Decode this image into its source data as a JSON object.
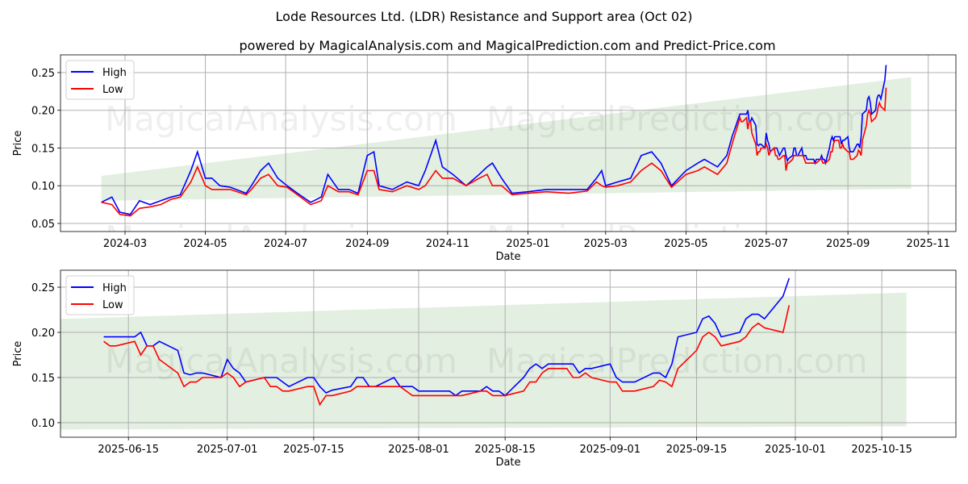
{
  "chart_data": [
    {
      "type": "line",
      "title": "Lode Resources Ltd. (LDR) Resistance and Support area (Oct 02)",
      "subtitle": "powered by MagicalAnalysis.com and MagicalPrediction.com and Predict-Price.com",
      "xlabel": "Date",
      "ylabel": "Price",
      "xlim": [
        "2024-01-12",
        "2025-11-22"
      ],
      "ylim": [
        0.0393,
        0.2735
      ],
      "xticks": [
        {
          "date": "2024-03-01",
          "label": "2024-03"
        },
        {
          "date": "2024-05-01",
          "label": "2024-05"
        },
        {
          "date": "2024-07-01",
          "label": "2024-07"
        },
        {
          "date": "2024-09-01",
          "label": "2024-09"
        },
        {
          "date": "2024-11-01",
          "label": "2024-11"
        },
        {
          "date": "2025-01-01",
          "label": "2025-01"
        },
        {
          "date": "2025-03-01",
          "label": "2025-03"
        },
        {
          "date": "2025-05-01",
          "label": "2025-05"
        },
        {
          "date": "2025-07-01",
          "label": "2025-07"
        },
        {
          "date": "2025-09-01",
          "label": "2025-09"
        },
        {
          "date": "2025-11-01",
          "label": "2025-11"
        }
      ],
      "yticks": [
        "0.05",
        "0.10",
        "0.15",
        "0.20",
        "0.25"
      ],
      "grid": true,
      "legend": {
        "placement": "top-left",
        "entries": [
          "High",
          "Low"
        ]
      },
      "band": {
        "start": "2024-02-12",
        "end": "2025-10-19",
        "lower": [
          0.08,
          0.096
        ],
        "upper": [
          0.113,
          0.244
        ],
        "color": "#e3efe1"
      },
      "series_colors": {
        "High": "#0000ff",
        "Low": "#ff0000"
      },
      "dates": [
        "2024-02-12",
        "2024-02-20",
        "2024-02-26",
        "2024-03-05",
        "2024-03-12",
        "2024-03-20",
        "2024-03-28",
        "2024-04-05",
        "2024-04-12",
        "2024-04-20",
        "2024-04-25",
        "2024-05-01",
        "2024-05-06",
        "2024-05-12",
        "2024-05-20",
        "2024-06-01",
        "2024-06-05",
        "2024-06-12",
        "2024-06-18",
        "2024-06-25",
        "2024-07-02",
        "2024-07-10",
        "2024-07-20",
        "2024-07-28",
        "2024-08-02",
        "2024-08-10",
        "2024-08-18",
        "2024-08-25",
        "2024-09-01",
        "2024-09-06",
        "2024-09-10",
        "2024-09-20",
        "2024-10-01",
        "2024-10-10",
        "2024-10-15",
        "2024-10-23",
        "2024-10-28",
        "2024-11-05",
        "2024-11-15",
        "2024-11-25",
        "2024-12-01",
        "2024-12-05",
        "2024-12-12",
        "2024-12-20",
        "2025-01-01",
        "2025-01-15",
        "2025-02-01",
        "2025-02-15",
        "2025-02-22",
        "2025-02-26",
        "2025-03-01",
        "2025-03-10",
        "2025-03-20",
        "2025-03-28",
        "2025-04-05",
        "2025-04-12",
        "2025-04-20",
        "2025-05-01",
        "2025-05-10",
        "2025-05-15",
        "2025-05-25",
        "2025-06-01",
        "2025-06-05"
      ],
      "high": [
        0.078,
        0.085,
        0.065,
        0.062,
        0.08,
        0.075,
        0.08,
        0.085,
        0.088,
        0.12,
        0.145,
        0.11,
        0.11,
        0.1,
        0.098,
        0.09,
        0.1,
        0.12,
        0.13,
        0.11,
        0.1,
        0.09,
        0.078,
        0.085,
        0.115,
        0.095,
        0.095,
        0.09,
        0.14,
        0.145,
        0.1,
        0.095,
        0.105,
        0.1,
        0.12,
        0.16,
        0.125,
        0.115,
        0.1,
        0.115,
        0.125,
        0.13,
        0.11,
        0.09,
        0.092,
        0.095,
        0.095,
        0.095,
        0.11,
        0.12,
        0.1,
        0.105,
        0.11,
        0.14,
        0.145,
        0.13,
        0.1,
        0.12,
        0.13,
        0.135,
        0.125,
        0.14,
        0.165
      ],
      "low": [
        0.078,
        0.075,
        0.062,
        0.06,
        0.07,
        0.072,
        0.075,
        0.082,
        0.085,
        0.105,
        0.125,
        0.1,
        0.095,
        0.095,
        0.095,
        0.088,
        0.095,
        0.11,
        0.115,
        0.1,
        0.098,
        0.088,
        0.075,
        0.08,
        0.1,
        0.092,
        0.092,
        0.088,
        0.12,
        0.12,
        0.095,
        0.092,
        0.1,
        0.095,
        0.1,
        0.12,
        0.11,
        0.11,
        0.1,
        0.11,
        0.115,
        0.1,
        0.1,
        0.088,
        0.09,
        0.092,
        0.09,
        0.093,
        0.105,
        0.1,
        0.098,
        0.1,
        0.105,
        0.12,
        0.13,
        0.12,
        0.098,
        0.115,
        0.12,
        0.125,
        0.115,
        0.13,
        0.155
      ],
      "continues_with_recent_series": true
    },
    {
      "type": "line",
      "xlabel": "Date",
      "ylabel": "Price",
      "xlim": [
        "2025-06-04",
        "2025-10-27"
      ],
      "ylim": [
        0.0839,
        0.2688
      ],
      "xticks": [
        {
          "date": "2025-06-15",
          "label": "2025-06-15"
        },
        {
          "date": "2025-07-01",
          "label": "2025-07-01"
        },
        {
          "date": "2025-07-15",
          "label": "2025-07-15"
        },
        {
          "date": "2025-08-01",
          "label": "2025-08-01"
        },
        {
          "date": "2025-08-15",
          "label": "2025-08-15"
        },
        {
          "date": "2025-09-01",
          "label": "2025-09-01"
        },
        {
          "date": "2025-09-15",
          "label": "2025-09-15"
        },
        {
          "date": "2025-10-01",
          "label": "2025-10-01"
        },
        {
          "date": "2025-10-15",
          "label": "2025-10-15"
        }
      ],
      "yticks": [
        "0.10",
        "0.15",
        "0.20",
        "0.25"
      ],
      "grid": true,
      "legend": {
        "placement": "top-left",
        "entries": [
          "High",
          "Low"
        ]
      },
      "band": {
        "start": "2024-02-12",
        "end": "2025-10-19",
        "lower": [
          0.08,
          0.096
        ],
        "upper": [
          0.113,
          0.244
        ],
        "color": "#e3efe1"
      },
      "series_colors": {
        "High": "#0000ff",
        "Low": "#ff0000"
      },
      "high_series": {
        "dates": [
          "2025-06-11",
          "2025-06-16",
          "2025-06-17",
          "2025-06-18",
          "2025-06-19",
          "2025-06-20",
          "2025-06-23",
          "2025-06-24",
          "2025-06-25",
          "2025-06-26",
          "2025-06-27",
          "2025-06-30",
          "2025-07-01",
          "2025-07-02",
          "2025-07-03",
          "2025-07-04",
          "2025-07-07",
          "2025-07-09",
          "2025-07-11",
          "2025-07-14",
          "2025-07-15",
          "2025-07-16",
          "2025-07-17",
          "2025-07-18",
          "2025-07-21",
          "2025-07-22",
          "2025-07-23",
          "2025-07-24",
          "2025-07-25",
          "2025-07-28",
          "2025-07-29",
          "2025-07-31",
          "2025-08-01",
          "2025-08-06",
          "2025-08-07",
          "2025-08-08",
          "2025-08-11",
          "2025-08-12",
          "2025-08-13",
          "2025-08-14",
          "2025-08-15",
          "2025-08-18",
          "2025-08-19",
          "2025-08-20",
          "2025-08-21",
          "2025-08-22",
          "2025-08-26",
          "2025-08-27",
          "2025-08-28",
          "2025-08-29",
          "2025-09-01",
          "2025-09-02",
          "2025-09-03",
          "2025-09-05",
          "2025-09-08",
          "2025-09-09",
          "2025-09-10",
          "2025-09-11",
          "2025-09-12",
          "2025-09-15",
          "2025-09-16",
          "2025-09-17",
          "2025-09-18",
          "2025-09-19",
          "2025-09-22",
          "2025-09-23",
          "2025-09-24",
          "2025-09-25",
          "2025-09-26",
          "2025-09-29",
          "2025-09-30"
        ],
        "values": [
          0.195,
          0.195,
          0.2,
          0.185,
          0.185,
          0.19,
          0.18,
          0.155,
          0.153,
          0.155,
          0.155,
          0.15,
          0.17,
          0.16,
          0.155,
          0.145,
          0.15,
          0.15,
          0.14,
          0.15,
          0.15,
          0.14,
          0.133,
          0.136,
          0.14,
          0.15,
          0.15,
          0.14,
          0.14,
          0.15,
          0.14,
          0.14,
          0.135,
          0.135,
          0.13,
          0.135,
          0.135,
          0.14,
          0.135,
          0.135,
          0.13,
          0.15,
          0.16,
          0.165,
          0.16,
          0.165,
          0.165,
          0.155,
          0.16,
          0.16,
          0.165,
          0.15,
          0.145,
          0.145,
          0.155,
          0.155,
          0.15,
          0.165,
          0.195,
          0.2,
          0.215,
          0.218,
          0.21,
          0.195,
          0.2,
          0.215,
          0.22,
          0.22,
          0.215,
          0.24,
          0.26
        ]
      },
      "low_series": {
        "dates": [
          "2025-06-11",
          "2025-06-12",
          "2025-06-13",
          "2025-06-16",
          "2025-06-17",
          "2025-06-18",
          "2025-06-19",
          "2025-06-20",
          "2025-06-23",
          "2025-06-24",
          "2025-06-25",
          "2025-06-26",
          "2025-06-27",
          "2025-06-30",
          "2025-07-01",
          "2025-07-02",
          "2025-07-03",
          "2025-07-04",
          "2025-07-07",
          "2025-07-08",
          "2025-07-09",
          "2025-07-10",
          "2025-07-11",
          "2025-07-14",
          "2025-07-15",
          "2025-07-16",
          "2025-07-17",
          "2025-07-18",
          "2025-07-21",
          "2025-07-22",
          "2025-07-29",
          "2025-07-31",
          "2025-08-07",
          "2025-08-08",
          "2025-08-11",
          "2025-08-12",
          "2025-08-13",
          "2025-08-15",
          "2025-08-18",
          "2025-08-19",
          "2025-08-20",
          "2025-08-21",
          "2025-08-22",
          "2025-08-25",
          "2025-08-26",
          "2025-08-27",
          "2025-08-28",
          "2025-08-29",
          "2025-09-01",
          "2025-09-02",
          "2025-09-03",
          "2025-09-05",
          "2025-09-08",
          "2025-09-09",
          "2025-09-10",
          "2025-09-11",
          "2025-09-12",
          "2025-09-15",
          "2025-09-16",
          "2025-09-17",
          "2025-09-18",
          "2025-09-19",
          "2025-09-22",
          "2025-09-23",
          "2025-09-24",
          "2025-09-25",
          "2025-09-26",
          "2025-09-29",
          "2025-09-30"
        ],
        "values": [
          0.19,
          0.185,
          0.185,
          0.19,
          0.175,
          0.185,
          0.185,
          0.17,
          0.155,
          0.14,
          0.145,
          0.145,
          0.15,
          0.15,
          0.155,
          0.15,
          0.14,
          0.145,
          0.15,
          0.14,
          0.14,
          0.135,
          0.135,
          0.14,
          0.14,
          0.12,
          0.13,
          0.13,
          0.135,
          0.14,
          0.14,
          0.13,
          0.13,
          0.13,
          0.135,
          0.135,
          0.13,
          0.13,
          0.135,
          0.145,
          0.145,
          0.155,
          0.16,
          0.16,
          0.15,
          0.15,
          0.155,
          0.15,
          0.145,
          0.145,
          0.135,
          0.135,
          0.14,
          0.147,
          0.145,
          0.14,
          0.16,
          0.18,
          0.195,
          0.2,
          0.195,
          0.185,
          0.19,
          0.195,
          0.205,
          0.21,
          0.205,
          0.2,
          0.23
        ]
      }
    }
  ],
  "watermarks": {
    "left": "MagicalAnalysis.com",
    "right": "MagicalPrediction.com"
  }
}
